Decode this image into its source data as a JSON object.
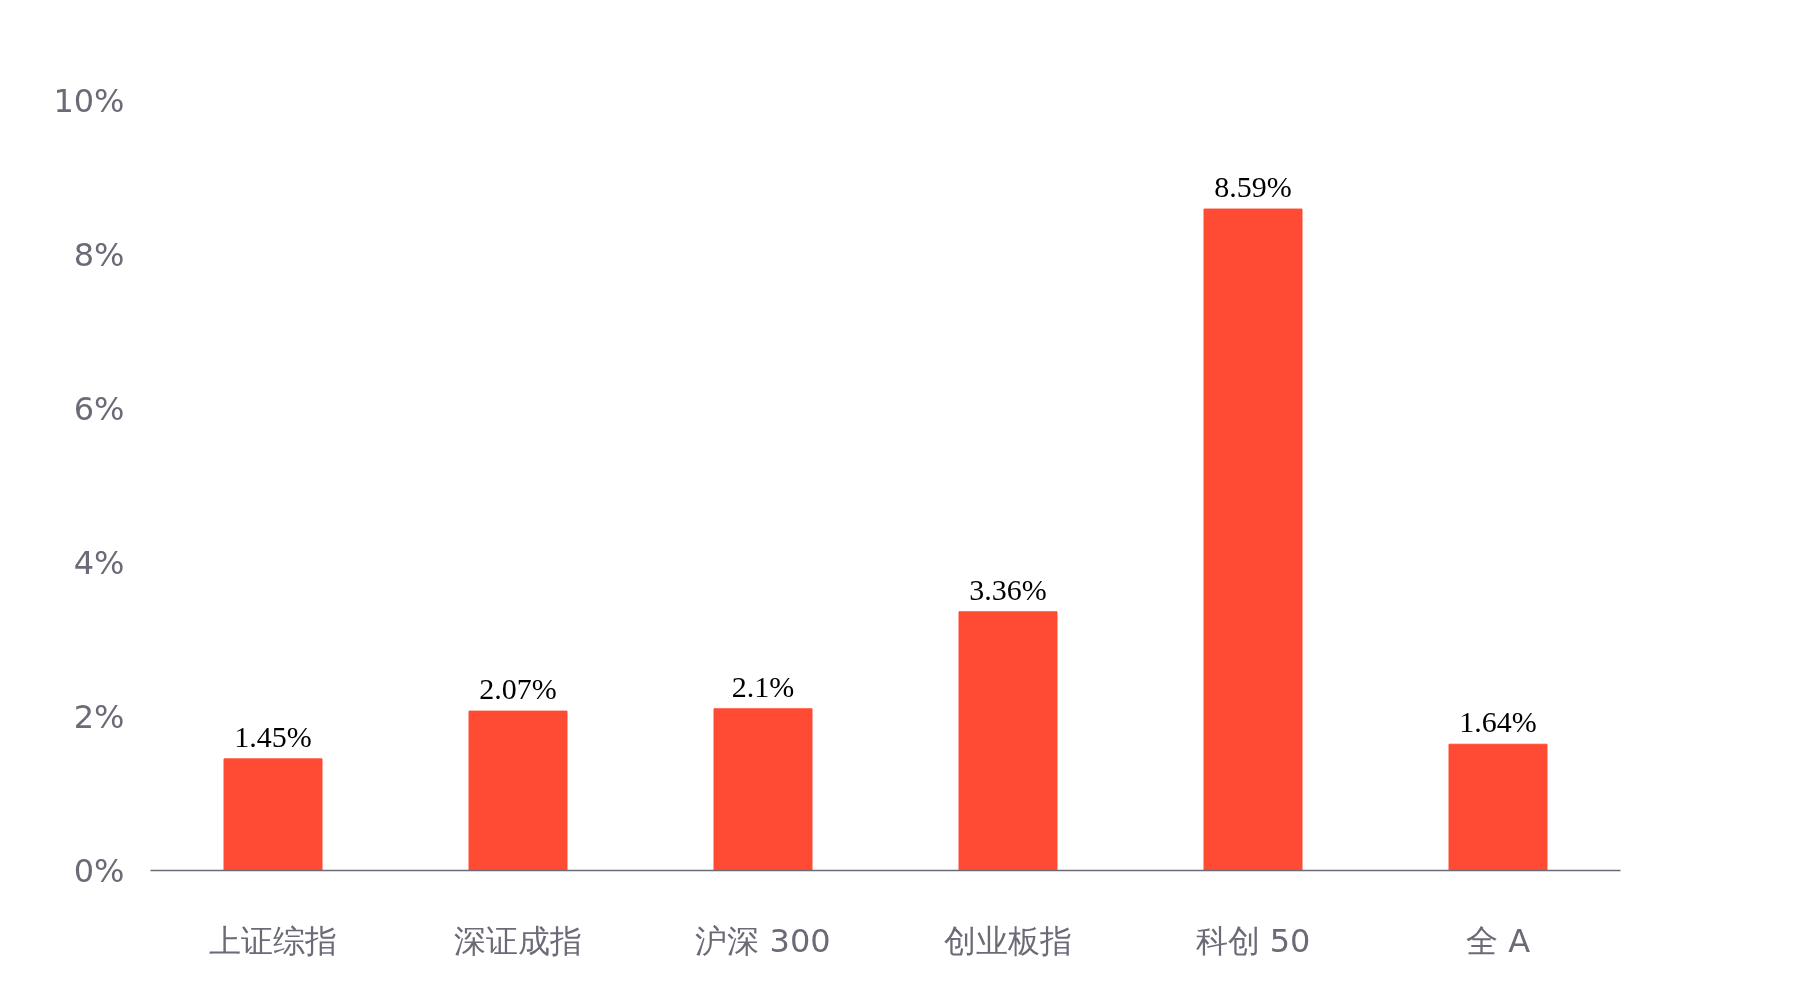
{
  "chart_data": {
    "type": "bar",
    "categories": [
      "上证综指",
      "深证成指",
      "沪深 300",
      "创业板指",
      "科创 50",
      "全 A"
    ],
    "values": [
      1.45,
      2.07,
      2.1,
      3.36,
      8.59,
      1.64
    ],
    "value_labels": [
      "1.45%",
      "2.07%",
      "2.1%",
      "3.36%",
      "8.59%",
      "1.64%"
    ],
    "color": "#ff4b33",
    "ylim": [
      0,
      10
    ],
    "yticks": [
      {
        "value": 0,
        "label": "0%"
      },
      {
        "value": 2,
        "label": "2%"
      },
      {
        "value": 4,
        "label": "4%"
      },
      {
        "value": 6,
        "label": "6%"
      },
      {
        "value": 8,
        "label": "8%"
      },
      {
        "value": 10,
        "label": "10%"
      }
    ],
    "grid": false
  }
}
